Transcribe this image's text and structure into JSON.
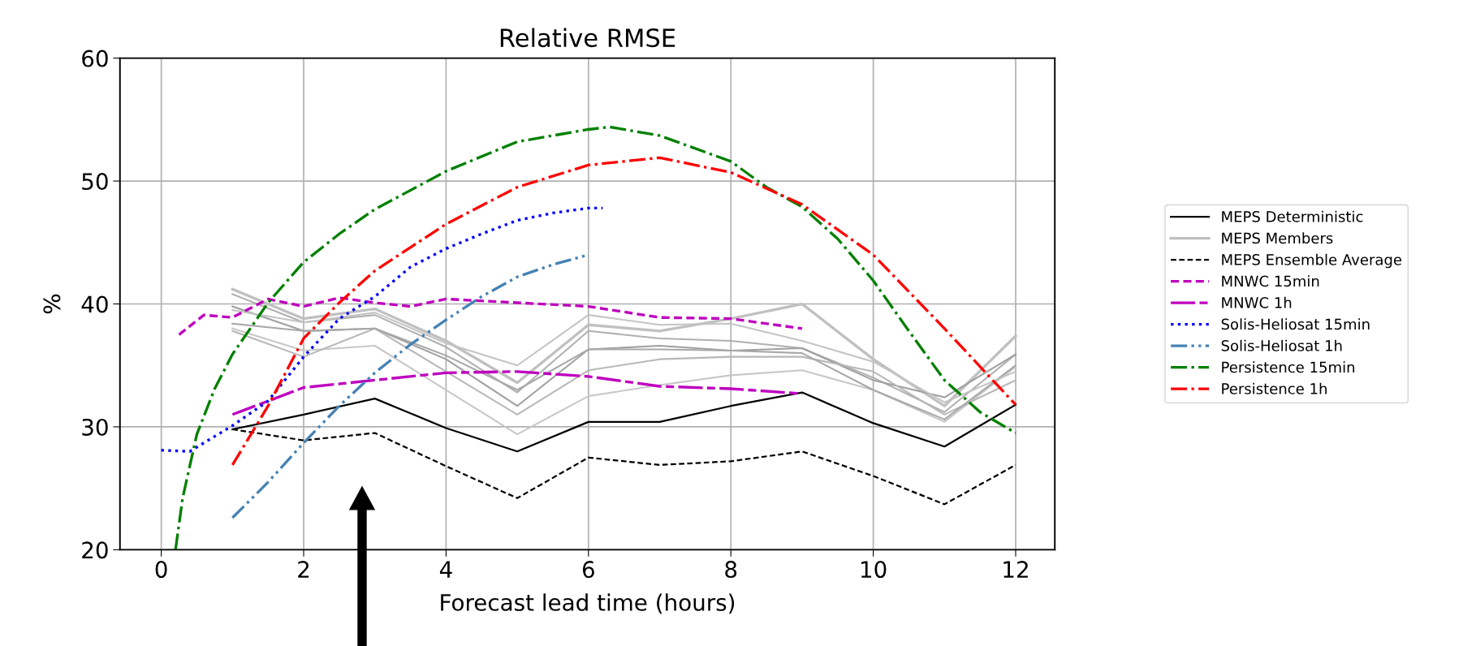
{
  "chart_data": {
    "type": "line",
    "title": "Relative RMSE",
    "xlabel": "Forecast lead time (hours)",
    "ylabel": "%",
    "xlim": [
      -0.58,
      12.55
    ],
    "xticks": [
      0,
      2,
      4,
      6,
      8,
      10,
      12
    ],
    "ylim": [
      20,
      60
    ],
    "yticks": [
      20,
      30,
      40,
      50,
      60
    ],
    "grid": true,
    "legend": "right",
    "marker": "none",
    "series": [
      {
        "name": "MEPS Deterministic",
        "color": "#000000",
        "line_style": "solid",
        "x": [
          1,
          2,
          3,
          4,
          5,
          6,
          7,
          8,
          9,
          10,
          11,
          12
        ],
        "values": [
          29.8,
          31.0,
          32.3,
          29.9,
          28.0,
          30.4,
          30.4,
          31.7,
          32.8,
          30.3,
          28.4,
          31.8
        ]
      },
      {
        "name": "MEPS Members",
        "color": "#c0c0c0",
        "line_style": "solid",
        "x": [
          1,
          2,
          3,
          4,
          5,
          6,
          7,
          8,
          9,
          10,
          11,
          12
        ],
        "values": [
          41.2,
          38.8,
          39.6,
          37.0,
          33.6,
          38.3,
          37.8,
          38.8,
          40.0,
          35.5,
          31.7,
          37.4
        ]
      },
      {
        "color": "#b0b0b0",
        "line_style": "solid",
        "x": [
          1,
          2,
          3,
          4,
          5,
          6,
          7,
          8,
          9,
          10,
          11,
          12
        ],
        "values": [
          40.8,
          38.5,
          39.1,
          36.5,
          32.8,
          37.8,
          37.2,
          37.0,
          36.4,
          34.0,
          31.2,
          35.9
        ]
      },
      {
        "color": "#a0a0a0",
        "line_style": "solid",
        "x": [
          1,
          2,
          3,
          4,
          5,
          6,
          7,
          8,
          9,
          10,
          11,
          12
        ],
        "values": [
          39.8,
          37.8,
          38.0,
          35.5,
          31.7,
          36.3,
          36.6,
          36.2,
          36.4,
          33.8,
          32.4,
          35.9
        ]
      },
      {
        "color": "#c8c8c8",
        "line_style": "solid",
        "x": [
          1,
          2,
          3,
          4,
          5,
          6,
          7,
          8,
          9,
          10,
          11,
          12
        ],
        "values": [
          38.0,
          36.2,
          36.6,
          33.0,
          29.4,
          32.5,
          33.4,
          34.2,
          34.6,
          33.0,
          30.4,
          34.9
        ]
      },
      {
        "color": "#b8b8b8",
        "line_style": "solid",
        "x": [
          1,
          2,
          3,
          4,
          5,
          6,
          7,
          8,
          9,
          10,
          11,
          12
        ],
        "values": [
          37.8,
          35.7,
          38.0,
          34.5,
          31.0,
          34.6,
          35.5,
          35.7,
          35.7,
          34.5,
          31.0,
          33.8
        ]
      },
      {
        "color": "#a8a8a8",
        "line_style": "solid",
        "x": [
          1,
          2,
          3,
          4,
          5,
          6,
          7,
          8,
          9,
          10,
          11,
          12
        ],
        "values": [
          38.4,
          37.8,
          38.0,
          35.8,
          33.0,
          36.3,
          36.3,
          36.2,
          36.0,
          33.0,
          30.6,
          35.0
        ]
      },
      {
        "color": "#c4c4c4",
        "line_style": "solid",
        "x": [
          1,
          2,
          3,
          4,
          5,
          6,
          7,
          8,
          9,
          10,
          11,
          12
        ],
        "values": [
          39.5,
          38.5,
          39.3,
          36.8,
          35.0,
          39.1,
          38.3,
          38.4,
          37.0,
          35.3,
          32.0,
          34.5
        ]
      },
      {
        "name": "MEPS Ensemble Average",
        "color": "#000000",
        "line_style": "dashed",
        "x": [
          1,
          2,
          3,
          4,
          5,
          6,
          7,
          8,
          9,
          10,
          11,
          12
        ],
        "values": [
          29.8,
          28.9,
          29.5,
          26.8,
          24.2,
          27.5,
          26.9,
          27.2,
          28.0,
          26.0,
          23.7,
          26.9
        ]
      },
      {
        "name": "MNWC 15min",
        "color": "#bf00bf",
        "line_style": "dashed",
        "x": [
          0.25,
          0.6,
          1,
          1.5,
          2,
          2.5,
          3,
          3.5,
          4,
          5,
          6,
          7,
          8,
          9
        ],
        "values": [
          37.5,
          39.1,
          38.9,
          40.4,
          39.8,
          40.5,
          40.1,
          39.8,
          40.4,
          40.1,
          39.8,
          38.9,
          38.8,
          38.0
        ]
      },
      {
        "name": "MNWC 1h",
        "color": "#bf00bf",
        "line_style": "longdash",
        "x": [
          1,
          2,
          3,
          4,
          5,
          6,
          7,
          8,
          9
        ],
        "values": [
          31.0,
          33.2,
          33.8,
          34.4,
          34.5,
          34.1,
          33.3,
          33.1,
          32.7
        ]
      },
      {
        "name": "Solis-Heliosat 15min",
        "color": "#0000ff",
        "line_style": "dotted",
        "x": [
          0,
          0.4,
          1,
          1.5,
          2,
          2.5,
          3,
          3.5,
          4,
          4.5,
          5,
          5.5,
          6,
          6.2
        ],
        "values": [
          28.1,
          28.0,
          30.1,
          32.1,
          35.7,
          38.8,
          40.6,
          43.0,
          44.5,
          45.7,
          46.8,
          47.4,
          47.8,
          47.8
        ]
      },
      {
        "name": "Solis-Heliosat 1h",
        "color": "#4682b4",
        "line_style": "dashdotdot",
        "x": [
          1,
          1.5,
          2,
          2.5,
          3,
          3.5,
          4,
          4.5,
          5,
          5.5,
          6
        ],
        "values": [
          22.6,
          25.5,
          28.7,
          31.7,
          34.4,
          36.7,
          38.7,
          40.6,
          42.2,
          43.2,
          44.0
        ]
      },
      {
        "name": "Persistence 15min",
        "color": "#008000",
        "line_style": "dashdot",
        "x": [
          0.2,
          0.3,
          0.5,
          0.75,
          1,
          1.5,
          2,
          2.5,
          3,
          4,
          5,
          6,
          6.3,
          7,
          8,
          8.5,
          9,
          9.5,
          10,
          10.5,
          11,
          11.5,
          12
        ],
        "values": [
          20.0,
          24.2,
          29.4,
          33.1,
          35.9,
          40.1,
          43.4,
          45.7,
          47.7,
          50.8,
          53.2,
          54.2,
          54.4,
          53.7,
          51.6,
          49.5,
          47.9,
          45.3,
          41.9,
          37.8,
          33.8,
          31.2,
          29.5
        ]
      },
      {
        "name": "Persistence 1h",
        "color": "#ff0000",
        "line_style": "dashdot",
        "x": [
          1,
          1.5,
          2,
          2.5,
          3,
          4,
          5,
          6,
          7,
          8,
          9,
          10,
          11,
          12
        ],
        "values": [
          26.9,
          31.7,
          37.2,
          40.1,
          42.7,
          46.5,
          49.5,
          51.3,
          51.9,
          50.7,
          48.1,
          44.0,
          38.0,
          31.8
        ]
      }
    ]
  }
}
